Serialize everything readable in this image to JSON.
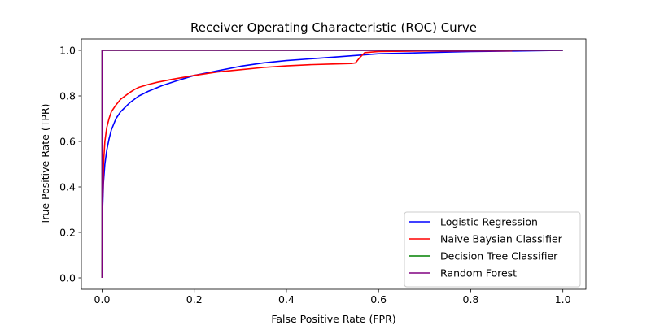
{
  "chart_data": {
    "type": "line",
    "title": "Receiver Operating Characteristic (ROC) Curve",
    "xlabel": "False Positive Rate (FPR)",
    "ylabel": "True Positive Rate (TPR)",
    "xlim": [
      -0.045,
      1.05
    ],
    "ylim": [
      -0.05,
      1.05
    ],
    "xticks": [
      0.0,
      0.2,
      0.4,
      0.6,
      0.8,
      1.0
    ],
    "yticks": [
      0.0,
      0.2,
      0.4,
      0.6,
      0.8,
      1.0
    ],
    "tick_labels_x": [
      "0.0",
      "0.2",
      "0.4",
      "0.6",
      "0.8",
      "1.0"
    ],
    "tick_labels_y": [
      "0.0",
      "0.2",
      "0.4",
      "0.6",
      "0.8",
      "1.0"
    ],
    "grid": false,
    "legend_position": "lower-right",
    "series": [
      {
        "name": "Logistic Regression",
        "color": "#0000ff",
        "x": [
          0,
          0.001,
          0.003,
          0.006,
          0.01,
          0.015,
          0.02,
          0.03,
          0.04,
          0.05,
          0.06,
          0.08,
          0.1,
          0.13,
          0.16,
          0.2,
          0.25,
          0.3,
          0.35,
          0.4,
          0.5,
          0.6,
          0.7,
          0.8,
          0.9,
          1.0
        ],
        "y": [
          0.0,
          0.3,
          0.42,
          0.5,
          0.56,
          0.61,
          0.65,
          0.7,
          0.73,
          0.75,
          0.77,
          0.8,
          0.82,
          0.845,
          0.865,
          0.89,
          0.91,
          0.93,
          0.945,
          0.955,
          0.97,
          0.985,
          0.99,
          0.995,
          0.997,
          1.0
        ]
      },
      {
        "name": "Naive Baysian Classifier",
        "color": "#ff0000",
        "x": [
          0,
          0.001,
          0.003,
          0.006,
          0.01,
          0.015,
          0.02,
          0.03,
          0.04,
          0.05,
          0.06,
          0.07,
          0.08,
          0.1,
          0.12,
          0.15,
          0.2,
          0.25,
          0.3,
          0.35,
          0.4,
          0.45,
          0.5,
          0.54,
          0.55,
          0.56,
          0.57,
          0.6,
          0.7,
          0.8,
          0.89
        ],
        "y": [
          0.0,
          0.32,
          0.5,
          0.6,
          0.66,
          0.7,
          0.73,
          0.76,
          0.785,
          0.8,
          0.815,
          0.828,
          0.838,
          0.85,
          0.86,
          0.872,
          0.89,
          0.905,
          0.915,
          0.925,
          0.932,
          0.937,
          0.94,
          0.942,
          0.945,
          0.97,
          0.99,
          0.995,
          0.997,
          0.998,
          0.998
        ]
      },
      {
        "name": "Decision Tree Classifier",
        "color": "#008000",
        "x": [
          0,
          0,
          1.0
        ],
        "y": [
          0,
          1.0,
          1.0
        ]
      },
      {
        "name": "Random Forest",
        "color": "#800080",
        "x": [
          0,
          0,
          1.0
        ],
        "y": [
          0,
          1.0,
          1.0
        ]
      }
    ]
  }
}
